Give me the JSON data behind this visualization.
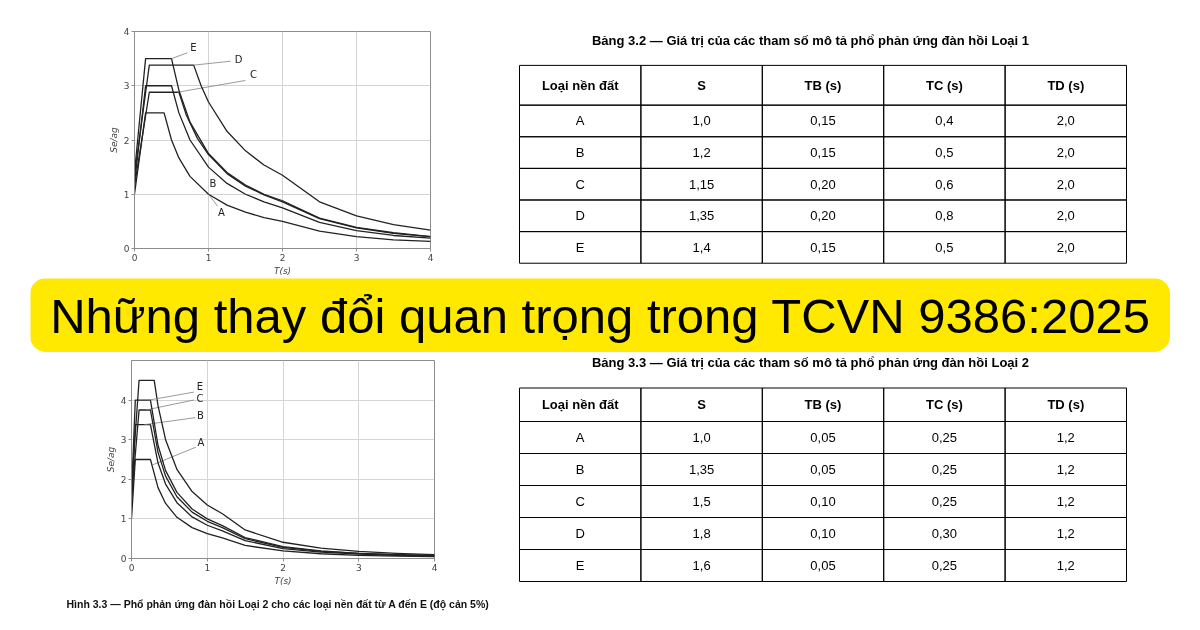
{
  "chart_data": [
    {
      "type": "line",
      "xlabel": "T(s)",
      "ylabel": "Se/ag",
      "xlim": [
        0,
        4
      ],
      "ylim": [
        0,
        4
      ],
      "xticks": [
        0,
        1,
        2,
        3,
        4
      ],
      "yticks": [
        0,
        1,
        2,
        3,
        4
      ],
      "grid": true,
      "series": [
        {
          "name": "A",
          "color": "#222222",
          "x": [
            0,
            0.15,
            0.4,
            0.5,
            0.6,
            0.75,
            1.0,
            1.25,
            1.5,
            1.75,
            2.0,
            2.5,
            3.0,
            3.5,
            4.0
          ],
          "values": [
            1.0,
            2.5,
            2.5,
            2.0,
            1.67,
            1.33,
            1.0,
            0.8,
            0.67,
            0.57,
            0.5,
            0.32,
            0.22,
            0.16,
            0.13
          ]
        },
        {
          "name": "B",
          "color": "#222222",
          "x": [
            0,
            0.15,
            0.5,
            0.6,
            0.75,
            1.0,
            1.25,
            1.5,
            1.75,
            2.0,
            2.5,
            3.0,
            3.5,
            4.0
          ],
          "values": [
            1.2,
            3.0,
            3.0,
            2.5,
            2.0,
            1.5,
            1.2,
            1.0,
            0.86,
            0.75,
            0.48,
            0.33,
            0.24,
            0.19
          ]
        },
        {
          "name": "C",
          "color": "#222222",
          "x": [
            0,
            0.2,
            0.6,
            0.7,
            0.85,
            1.0,
            1.25,
            1.5,
            1.75,
            2.0,
            2.5,
            3.0,
            3.5,
            4.0
          ],
          "values": [
            1.15,
            2.88,
            2.88,
            2.46,
            2.03,
            1.73,
            1.38,
            1.15,
            0.99,
            0.86,
            0.55,
            0.38,
            0.28,
            0.22
          ]
        },
        {
          "name": "D",
          "color": "#222222",
          "x": [
            0,
            0.2,
            0.8,
            0.9,
            1.0,
            1.25,
            1.5,
            1.75,
            2.0,
            2.5,
            3.0,
            3.5,
            4.0
          ],
          "values": [
            1.35,
            3.38,
            3.38,
            3.0,
            2.7,
            2.16,
            1.8,
            1.54,
            1.35,
            0.86,
            0.6,
            0.44,
            0.34
          ]
        },
        {
          "name": "E",
          "color": "#222222",
          "x": [
            0,
            0.15,
            0.5,
            0.6,
            0.75,
            1.0,
            1.25,
            1.5,
            1.75,
            2.0,
            2.5,
            3.0,
            3.5,
            4.0
          ],
          "values": [
            1.4,
            3.5,
            3.5,
            2.92,
            2.33,
            1.75,
            1.4,
            1.17,
            1.0,
            0.88,
            0.56,
            0.39,
            0.29,
            0.22
          ]
        }
      ]
    },
    {
      "type": "heatmap",
      "title": "Bảng 3.2 — Giá trị của các tham số mô tả phổ phản ứng đàn hồi Loại 1",
      "ylabel": "Loại nền đất",
      "categories": [
        "S",
        "TB (s)",
        "TC (s)",
        "TD (s)"
      ],
      "y_categories": [
        "A",
        "B",
        "C",
        "D",
        "E"
      ],
      "cells": [
        [
          1.0,
          0.15,
          0.4,
          2.0
        ],
        [
          1.2,
          0.15,
          0.5,
          2.0
        ],
        [
          1.15,
          0.2,
          0.6,
          2.0
        ],
        [
          1.35,
          0.2,
          0.8,
          2.0
        ],
        [
          1.4,
          0.15,
          0.5,
          2.0
        ]
      ],
      "cell_labels": [
        [
          "1,0",
          "0,15",
          "0,4",
          "2,0"
        ],
        [
          "1,2",
          "0,15",
          "0,5",
          "2,0"
        ],
        [
          "1,15",
          "0,20",
          "0,6",
          "2,0"
        ],
        [
          "1,35",
          "0,20",
          "0,8",
          "2,0"
        ],
        [
          "1,4",
          "0,15",
          "0,5",
          "2,0"
        ]
      ]
    },
    {
      "type": "other",
      "title": "Những thay đổi quan trọng trong TCVN 9386:2025",
      "color": "#ffe900"
    },
    {
      "type": "line",
      "xlabel": "T(s)",
      "ylabel": "Se/ag",
      "xlim": [
        0,
        4
      ],
      "ylim": [
        0,
        5
      ],
      "xticks": [
        0,
        1,
        2,
        3,
        4
      ],
      "yticks": [
        0,
        1,
        2,
        3,
        4
      ],
      "grid": true,
      "annotations": [
        "Hình 3.3 — Phổ phản ứng đàn hồi Loại 2 cho các loại nền đất từ A đến E (độ cản 5%)"
      ],
      "series": [
        {
          "name": "A",
          "color": "#222222",
          "x": [
            0,
            0.05,
            0.25,
            0.35,
            0.45,
            0.6,
            0.8,
            1.0,
            1.2,
            1.5,
            2.0,
            2.5,
            3.0,
            3.5,
            4.0
          ],
          "values": [
            1.0,
            2.5,
            2.5,
            1.79,
            1.39,
            1.04,
            0.78,
            0.63,
            0.52,
            0.33,
            0.19,
            0.12,
            0.08,
            0.06,
            0.05
          ]
        },
        {
          "name": "B",
          "color": "#222222",
          "x": [
            0,
            0.05,
            0.25,
            0.35,
            0.45,
            0.6,
            0.8,
            1.0,
            1.2,
            1.5,
            2.0,
            2.5,
            3.0,
            3.5,
            4.0
          ],
          "values": [
            1.35,
            3.38,
            3.38,
            2.41,
            1.88,
            1.41,
            1.05,
            0.84,
            0.7,
            0.45,
            0.25,
            0.16,
            0.11,
            0.08,
            0.06
          ]
        },
        {
          "name": "C",
          "color": "#222222",
          "x": [
            0,
            0.1,
            0.25,
            0.35,
            0.45,
            0.6,
            0.8,
            1.0,
            1.2,
            1.5,
            2.0,
            2.5,
            3.0,
            3.5,
            4.0
          ],
          "values": [
            1.5,
            3.75,
            3.75,
            2.68,
            2.08,
            1.56,
            1.17,
            0.94,
            0.78,
            0.5,
            0.28,
            0.18,
            0.13,
            0.09,
            0.07
          ]
        },
        {
          "color": "#222222",
          "x": [
            0,
            0.1,
            0.3,
            0.35,
            0.45,
            0.6,
            0.8,
            1.0,
            1.2,
            1.5,
            2.0,
            2.5,
            3.0,
            3.5,
            4.0
          ],
          "values": [
            1.8,
            4.5,
            4.5,
            3.86,
            3.0,
            2.25,
            1.69,
            1.35,
            1.13,
            0.72,
            0.41,
            0.26,
            0.18,
            0.13,
            0.1
          ]
        },
        {
          "name": "E",
          "color": "#222222",
          "x": [
            0,
            0.05,
            0.25,
            0.35,
            0.45,
            0.6,
            0.8,
            1.0,
            1.2,
            1.5,
            2.0,
            2.5,
            3.0,
            3.5,
            4.0
          ],
          "values": [
            1.6,
            4.0,
            4.0,
            2.86,
            2.22,
            1.67,
            1.25,
            1.0,
            0.83,
            0.53,
            0.3,
            0.19,
            0.13,
            0.1,
            0.08
          ]
        }
      ]
    },
    {
      "type": "heatmap",
      "title": "Bảng 3.3 — Giá trị của các tham số mô tả phổ phản ứng đàn hồi Loại 2",
      "ylabel": "Loại nền đất",
      "categories": [
        "S",
        "TB (s)",
        "TC (s)",
        "TD (s)"
      ],
      "y_categories": [
        "A",
        "B",
        "C",
        "D",
        "E"
      ],
      "cells": [
        [
          1.0,
          0.05,
          0.25,
          1.2
        ],
        [
          1.35,
          0.05,
          0.25,
          1.2
        ],
        [
          1.5,
          0.1,
          0.25,
          1.2
        ],
        [
          1.8,
          0.1,
          0.3,
          1.2
        ],
        [
          1.6,
          0.05,
          0.25,
          1.2
        ]
      ],
      "cell_labels": [
        [
          "1,0",
          "0,05",
          "0,25",
          "1,2"
        ],
        [
          "1,35",
          "0,05",
          "0,25",
          "1,2"
        ],
        [
          "1,5",
          "0,10",
          "0,25",
          "1,2"
        ],
        [
          "1,8",
          "0,10",
          "0,30",
          "1,2"
        ],
        [
          "1,6",
          "0,05",
          "0,25",
          "1,2"
        ]
      ]
    }
  ]
}
